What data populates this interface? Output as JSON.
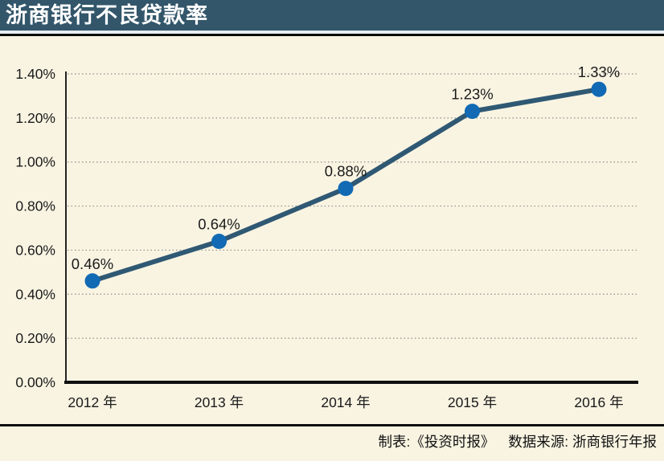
{
  "header": {
    "title": "浙商银行不良贷款率"
  },
  "footer": {
    "credit_left": "制表:《投资时报》",
    "credit_right": "数据来源: 浙商银行年报"
  },
  "colors": {
    "header_bg": "#33566a",
    "page_bg": "#f9f4e2",
    "line": "#2f5873",
    "point": "#116ab3",
    "grid": "#8c8c8c",
    "axis": "#222222",
    "baseline": "#0f0f0f",
    "text": "#1a1a1a",
    "rule": "#0c0c0c",
    "title_text": "#ffffff"
  },
  "chart_data": {
    "type": "line",
    "title": "浙商银行不良贷款率",
    "categories": [
      "2012 年",
      "2013 年",
      "2014 年",
      "2015 年",
      "2016 年"
    ],
    "series": [
      {
        "name": "不良贷款率",
        "values": [
          0.46,
          0.64,
          0.88,
          1.23,
          1.33
        ]
      }
    ],
    "point_labels": [
      "0.46%",
      "0.64%",
      "0.88%",
      "1.23%",
      "1.33%"
    ],
    "y_ticks": [
      {
        "v": 0.0,
        "label": "0.00%"
      },
      {
        "v": 0.2,
        "label": "0.20%"
      },
      {
        "v": 0.4,
        "label": "0.40%"
      },
      {
        "v": 0.6,
        "label": "0.60%"
      },
      {
        "v": 0.8,
        "label": "0.80%"
      },
      {
        "v": 1.0,
        "label": "1.00%"
      },
      {
        "v": 1.2,
        "label": "1.20%"
      },
      {
        "v": 1.4,
        "label": "1.40%"
      }
    ],
    "ylim": [
      0,
      1.4
    ],
    "xlabel": "",
    "ylabel": "",
    "grid": "horizontal-dotted",
    "legend": "none",
    "unit": "percent"
  }
}
